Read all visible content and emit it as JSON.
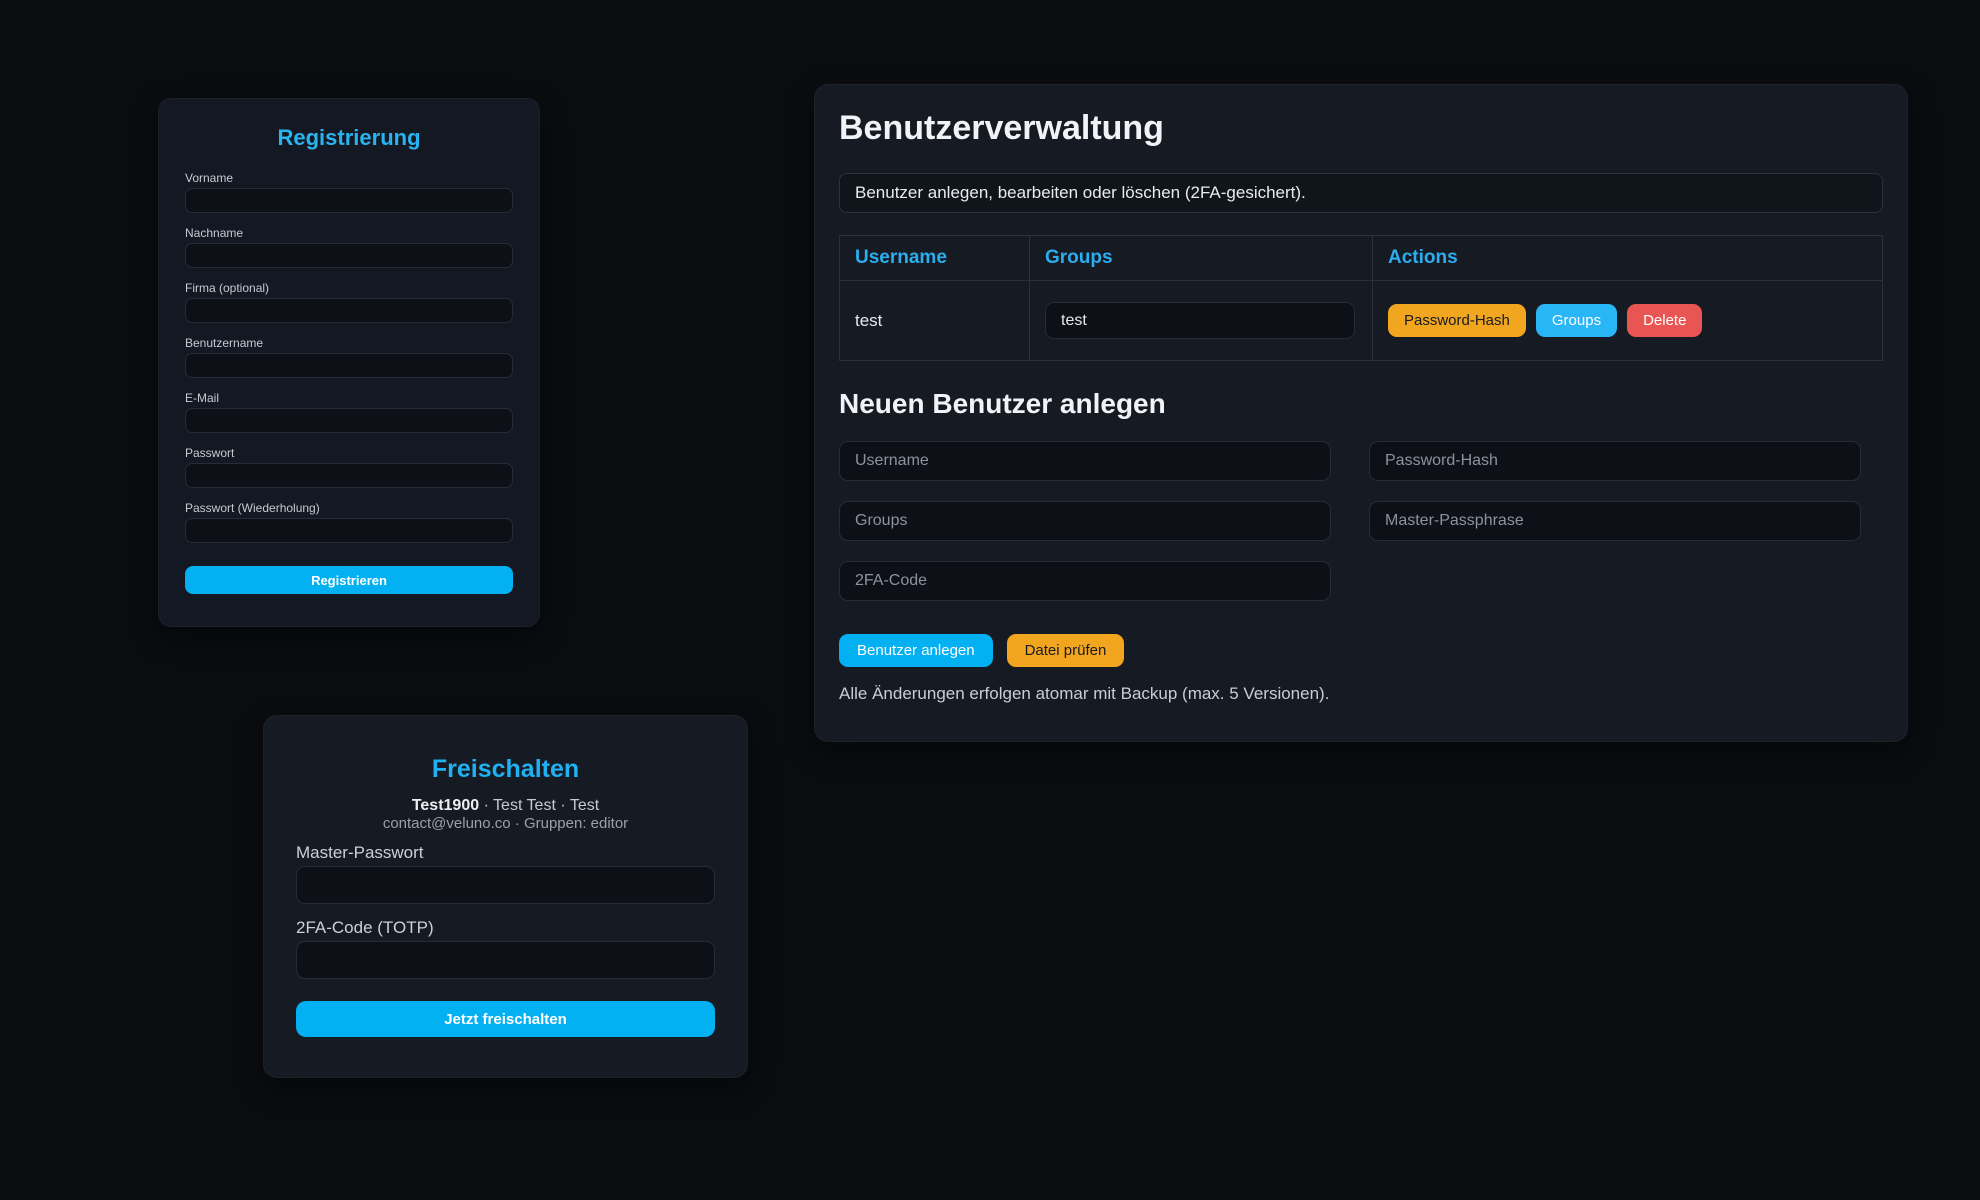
{
  "colors": {
    "accent_blue": "#29b4f0",
    "table_header_blue": "#2badee",
    "button_cyan": "#03b1f2",
    "button_blue": "#29b6f6",
    "button_orange": "#f2a51f",
    "button_red": "#e95552",
    "background": "#0a0c10",
    "card_background": "#151a23"
  },
  "registration": {
    "title": "Registrierung",
    "labels": [
      "Vorname",
      "Nachname",
      "Firma (optional)",
      "Benutzername",
      "E-Mail",
      "Passwort",
      "Passwort (Wiederholung)"
    ],
    "submit_label": "Registrieren"
  },
  "user_management": {
    "title": "Benutzerverwaltung",
    "description": "Benutzer anlegen, bearbeiten oder löschen (2FA-gesichert).",
    "table": {
      "headers": [
        "Username",
        "Groups",
        "Actions"
      ],
      "row": {
        "username": "test",
        "groups_value": "test",
        "actions": [
          "Password-Hash",
          "Groups",
          "Delete"
        ]
      }
    },
    "new_user": {
      "title": "Neuen Benutzer anlegen",
      "placeholders": {
        "username": "Username",
        "password_hash": "Password-Hash",
        "groups": "Groups",
        "master_passphrase": "Master-Passphrase",
        "twofa_code": "2FA-Code"
      },
      "create_label": "Benutzer anlegen",
      "check_label": "Datei prüfen"
    },
    "footer_note": "Alle Änderungen erfolgen atomar mit Backup (max. 5 Versionen)."
  },
  "unlock": {
    "title": "Freischalten",
    "user_name": "Test1900",
    "user_rest": " · Test Test · Test",
    "contact_line": "contact@veluno.co · Gruppen: editor",
    "master_label": "Master-Passwort",
    "totp_label": "2FA-Code (TOTP)",
    "submit_label": "Jetzt freischalten"
  }
}
